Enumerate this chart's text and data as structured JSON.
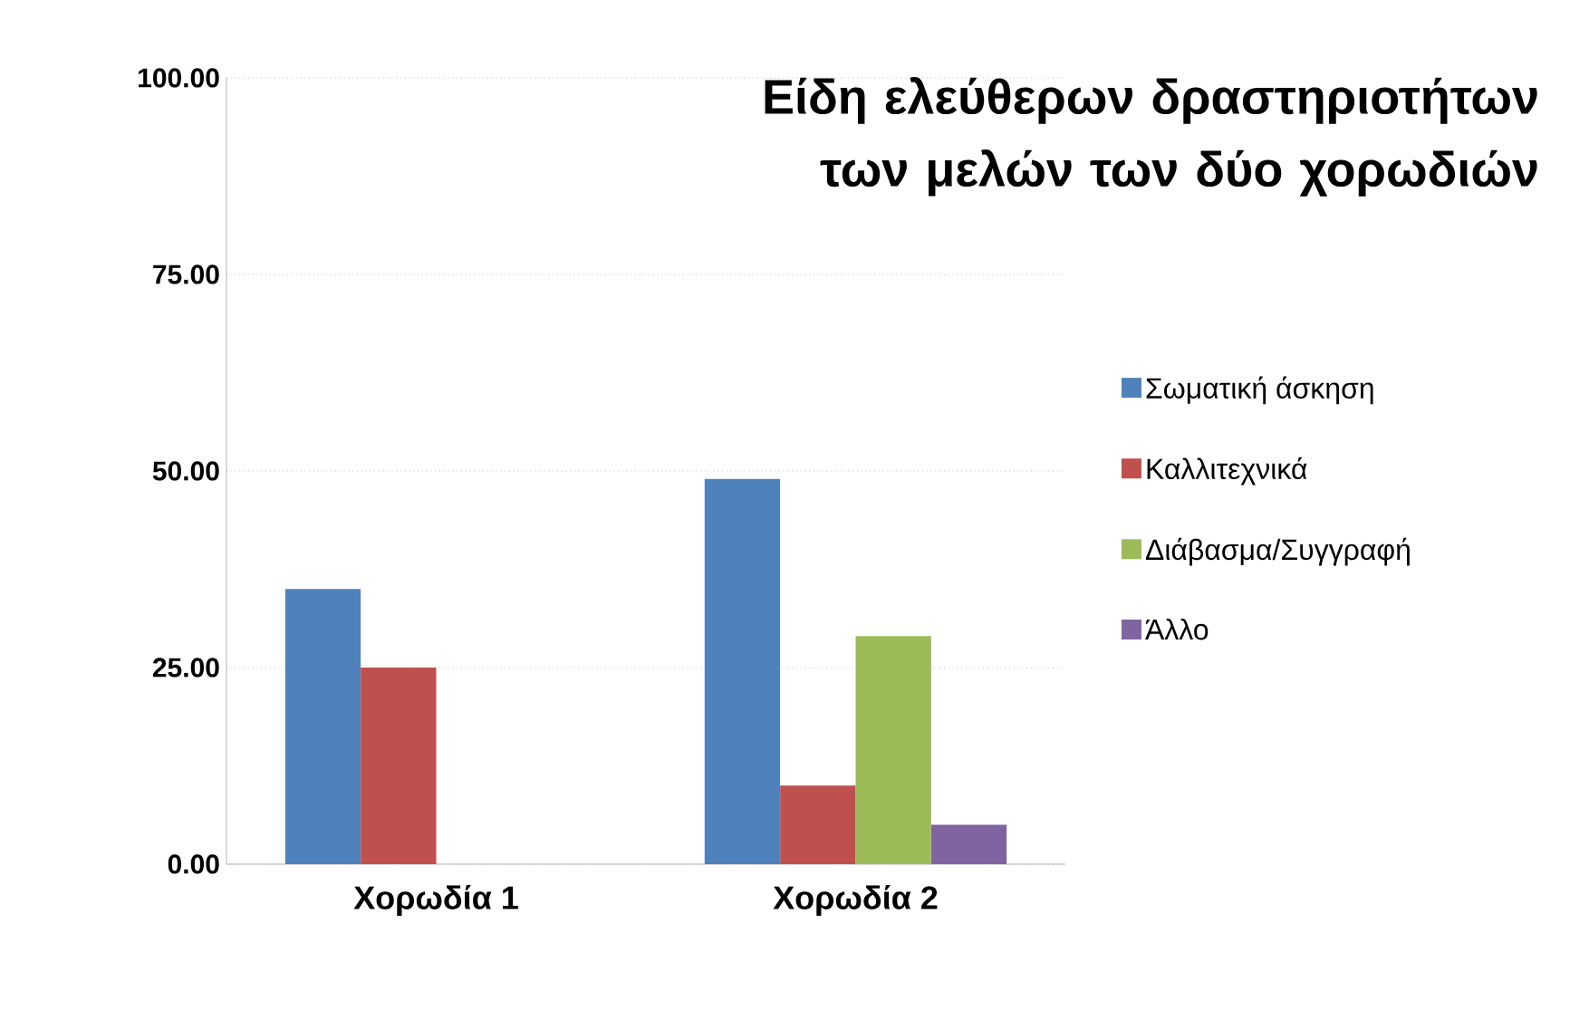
{
  "chart_data": {
    "type": "bar",
    "title": "Είδη ελεύθερων δραστηριοτήτων των μελών των δύο χορωδιών",
    "categories": [
      "Χορωδία 1",
      "Χορωδία 2"
    ],
    "series": [
      {
        "name": "Σωματική άσκηση",
        "color": "#4f81bd",
        "values": [
          35,
          49
        ]
      },
      {
        "name": "Καλλιτεχνικά",
        "color": "#c0504d",
        "values": [
          25,
          10
        ]
      },
      {
        "name": "Διάβασμα/Συγγραφή",
        "color": "#9bbb59",
        "values": [
          null,
          29
        ]
      },
      {
        "name": "Άλλο",
        "color": "#8064a2",
        "values": [
          null,
          5
        ]
      }
    ],
    "ylim": [
      0,
      100
    ],
    "yticks": [
      {
        "value": 0,
        "label": "0.00"
      },
      {
        "value": 25,
        "label": "25.00"
      },
      {
        "value": 50,
        "label": "50.00"
      },
      {
        "value": 75,
        "label": "75.00"
      },
      {
        "value": 100,
        "label": "100.00"
      }
    ],
    "grid": "y",
    "legend": "right"
  }
}
